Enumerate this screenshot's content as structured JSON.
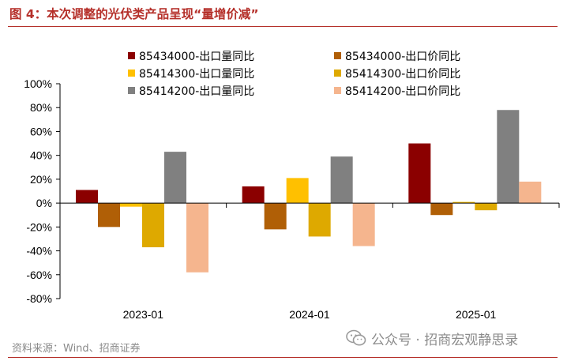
{
  "header": {
    "title": "图 4：本次调整的光伏类产品呈现“量增价减”"
  },
  "footer": {
    "source": "资料来源：Wind、招商证券",
    "watermark": "公众号 · 招商宏观静思录",
    "watermark_icon": "wechat-icon"
  },
  "colors": {
    "title": "#b5302a",
    "s1": "#8b0000",
    "s2": "#b05f06",
    "s3": "#ffc000",
    "s4": "#dea900",
    "s5": "#808080",
    "s6": "#f5b58e"
  },
  "chart_data": {
    "type": "bar",
    "title": "本次调整的光伏类产品呈现“量增价减”",
    "categories": [
      "2023-01",
      "2024-01",
      "2025-01"
    ],
    "series": [
      {
        "name": "85434000-出口量同比",
        "color": "#8b0000",
        "values": [
          11,
          14,
          50
        ]
      },
      {
        "name": "85434000-出口价同比",
        "color": "#b05f06",
        "values": [
          -20,
          -22,
          -10
        ]
      },
      {
        "name": "85414300-出口量同比",
        "color": "#ffc000",
        "values": [
          -3,
          21,
          1
        ]
      },
      {
        "name": "85414300-出口价同比",
        "color": "#dea900",
        "values": [
          -37,
          -28,
          -6
        ]
      },
      {
        "name": "85414200-出口量同比",
        "color": "#808080",
        "values": [
          43,
          39,
          78
        ]
      },
      {
        "name": "85414200-出口价同比",
        "color": "#f5b58e",
        "values": [
          -58,
          -36,
          18
        ]
      }
    ],
    "ylim": [
      -80,
      100
    ],
    "yticks": [
      -80,
      -60,
      -40,
      -20,
      0,
      20,
      40,
      60,
      80,
      100
    ],
    "ytick_labels": [
      "-80%",
      "-60%",
      "-40%",
      "-20%",
      "0%",
      "20%",
      "40%",
      "60%",
      "80%",
      "100%"
    ],
    "xlabel": "",
    "ylabel": "",
    "grid": false,
    "legend": "top"
  }
}
